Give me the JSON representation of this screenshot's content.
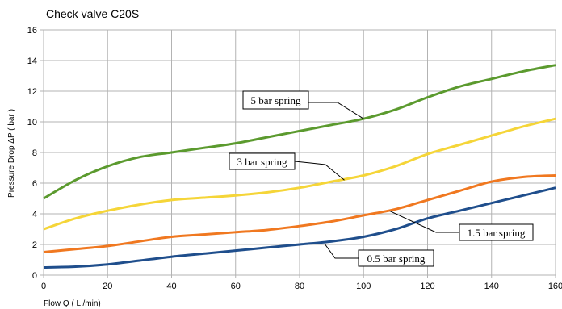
{
  "chart_data": {
    "type": "line",
    "title": "Check valve C20S",
    "xlabel": "Flow Q ( L /min)",
    "ylabel": "Pressure Drop ΔP ( bar )",
    "xlim": [
      0,
      160
    ],
    "ylim": [
      0,
      16
    ],
    "xticks": [
      0,
      20,
      40,
      60,
      80,
      100,
      120,
      140,
      160
    ],
    "yticks": [
      0,
      2,
      4,
      6,
      8,
      10,
      12,
      14,
      16
    ],
    "grid": true,
    "series": [
      {
        "name": "5 bar spring",
        "color": "#5b9a2e",
        "points": [
          [
            0,
            5.0
          ],
          [
            10,
            6.2
          ],
          [
            20,
            7.1
          ],
          [
            30,
            7.7
          ],
          [
            40,
            8.0
          ],
          [
            50,
            8.3
          ],
          [
            60,
            8.6
          ],
          [
            70,
            9.0
          ],
          [
            80,
            9.4
          ],
          [
            90,
            9.8
          ],
          [
            100,
            10.2
          ],
          [
            110,
            10.8
          ],
          [
            120,
            11.6
          ],
          [
            130,
            12.3
          ],
          [
            140,
            12.8
          ],
          [
            150,
            13.3
          ],
          [
            160,
            13.7
          ]
        ]
      },
      {
        "name": "3 bar spring",
        "color": "#f5d538",
        "points": [
          [
            0,
            3.0
          ],
          [
            10,
            3.7
          ],
          [
            20,
            4.2
          ],
          [
            30,
            4.6
          ],
          [
            40,
            4.9
          ],
          [
            50,
            5.05
          ],
          [
            60,
            5.2
          ],
          [
            70,
            5.4
          ],
          [
            80,
            5.7
          ],
          [
            90,
            6.1
          ],
          [
            100,
            6.5
          ],
          [
            110,
            7.1
          ],
          [
            120,
            7.9
          ],
          [
            130,
            8.5
          ],
          [
            140,
            9.1
          ],
          [
            150,
            9.7
          ],
          [
            160,
            10.2
          ]
        ]
      },
      {
        "name": "1.5 bar spring",
        "color": "#f07820",
        "points": [
          [
            0,
            1.5
          ],
          [
            10,
            1.7
          ],
          [
            20,
            1.9
          ],
          [
            30,
            2.2
          ],
          [
            40,
            2.5
          ],
          [
            50,
            2.65
          ],
          [
            60,
            2.8
          ],
          [
            70,
            2.95
          ],
          [
            80,
            3.2
          ],
          [
            90,
            3.5
          ],
          [
            100,
            3.9
          ],
          [
            110,
            4.3
          ],
          [
            120,
            4.9
          ],
          [
            130,
            5.5
          ],
          [
            140,
            6.1
          ],
          [
            150,
            6.4
          ],
          [
            160,
            6.5
          ]
        ]
      },
      {
        "name": "0.5 bar spring",
        "color": "#1f4e8c",
        "points": [
          [
            0,
            0.5
          ],
          [
            10,
            0.55
          ],
          [
            20,
            0.7
          ],
          [
            30,
            0.95
          ],
          [
            40,
            1.2
          ],
          [
            50,
            1.4
          ],
          [
            60,
            1.6
          ],
          [
            70,
            1.8
          ],
          [
            80,
            2.0
          ],
          [
            90,
            2.2
          ],
          [
            100,
            2.5
          ],
          [
            110,
            3.0
          ],
          [
            120,
            3.7
          ],
          [
            130,
            4.2
          ],
          [
            140,
            4.7
          ],
          [
            150,
            5.2
          ],
          [
            160,
            5.7
          ]
        ]
      }
    ],
    "annotations": [
      {
        "text": "5 bar spring",
        "target": [
          100,
          10.2
        ]
      },
      {
        "text": "3 bar spring",
        "target": [
          94,
          6.2
        ]
      },
      {
        "text": "1.5 bar spring",
        "target": [
          108,
          4.2
        ]
      },
      {
        "text": "0.5 bar spring",
        "target": [
          88,
          2.0
        ]
      }
    ]
  }
}
